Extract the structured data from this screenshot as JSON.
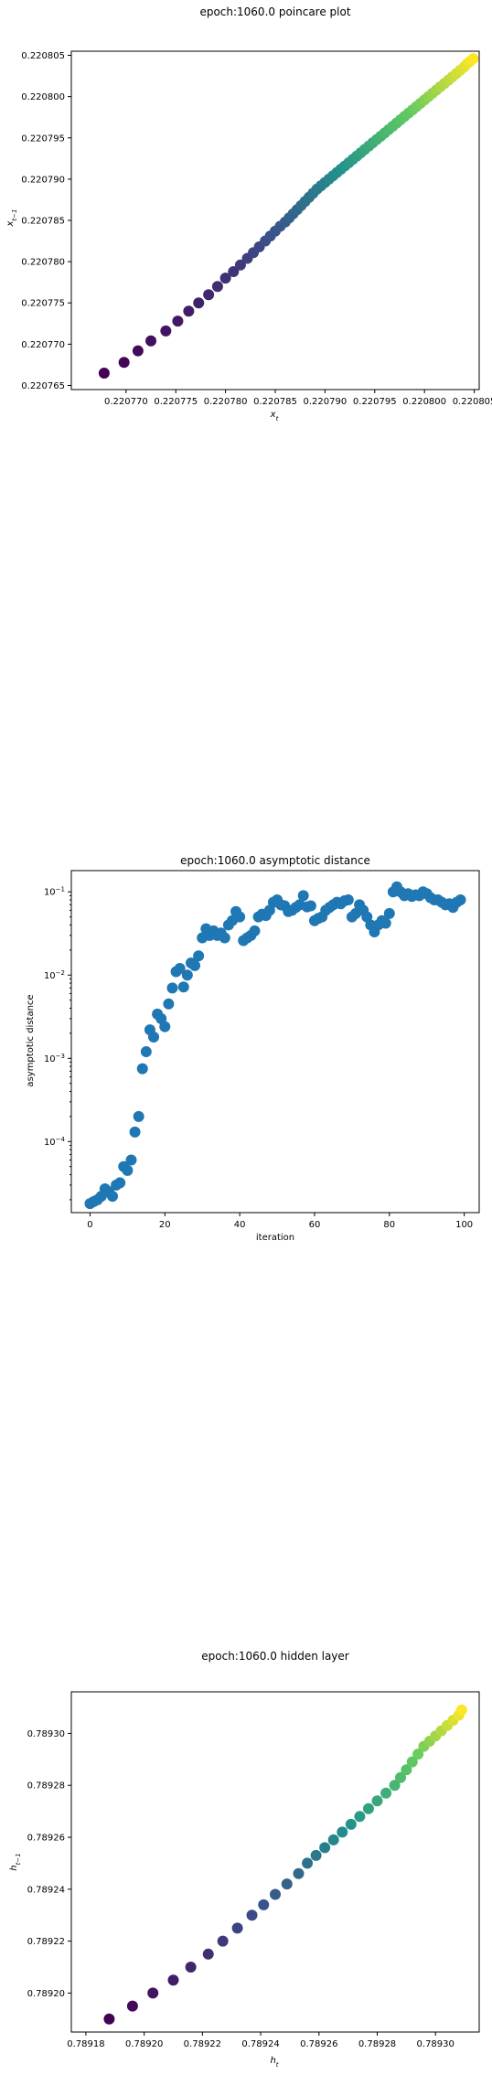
{
  "chart_data": [
    {
      "type": "scatter",
      "title": "epoch:1060.0 poincare plot",
      "xlabel": "x_t",
      "ylabel": "x_{t-1}",
      "xlim": [
        0.2207645,
        0.2208055
      ],
      "ylim": [
        0.2207645,
        0.2208055
      ],
      "x_ticks": [
        "0.220770",
        "0.220775",
        "0.220780",
        "0.220785",
        "0.220790",
        "0.220795",
        "0.220800",
        "0.220805"
      ],
      "y_ticks": [
        "0.220765",
        "0.220770",
        "0.220775",
        "0.220780",
        "0.220785",
        "0.220790",
        "0.220795",
        "0.220800",
        "0.220805"
      ],
      "colormap": "viridis",
      "x": [
        0.2207678,
        0.2207698,
        0.2207712,
        0.2207725,
        0.220774,
        0.2207752,
        0.2207763,
        0.2207773,
        0.2207783,
        0.2207792,
        0.22078,
        0.2207808,
        0.2207815,
        0.2207822,
        0.2207828,
        0.2207834,
        0.220784,
        0.2207845,
        0.220785,
        0.2207855,
        0.220786,
        0.2207864,
        0.2207868,
        0.2207872,
        0.2207876,
        0.220788,
        0.2207884,
        0.2207888,
        0.2207892,
        0.2207896,
        0.22079,
        0.2207904,
        0.2207908,
        0.2207912,
        0.2207916,
        0.220792,
        0.2207924,
        0.2207928,
        0.2207932,
        0.2207936,
        0.220794,
        0.2207944,
        0.2207948,
        0.2207952,
        0.2207956,
        0.220796,
        0.2207964,
        0.2207968,
        0.2207972,
        0.2207976,
        0.220798,
        0.2207984,
        0.2207988,
        0.2207992,
        0.2207996,
        0.2208,
        0.2208004,
        0.2208008,
        0.2208012,
        0.2208016,
        0.220802,
        0.2208024,
        0.2208028,
        0.2208032,
        0.2208036,
        0.220804,
        0.2208043,
        0.2208046,
        0.2208049
      ],
      "y": [
        0.2207665,
        0.2207678,
        0.2207692,
        0.2207704,
        0.2207716,
        0.2207728,
        0.220774,
        0.220775,
        0.220776,
        0.220777,
        0.220778,
        0.2207788,
        0.2207796,
        0.2207804,
        0.2207811,
        0.2207818,
        0.2207825,
        0.2207831,
        0.2207837,
        0.2207843,
        0.2207848,
        0.2207853,
        0.2207858,
        0.2207863,
        0.2207868,
        0.2207873,
        0.2207878,
        0.2207883,
        0.2207888,
        0.2207892,
        0.2207896,
        0.22079,
        0.2207904,
        0.2207908,
        0.2207912,
        0.2207916,
        0.220792,
        0.2207924,
        0.2207928,
        0.2207932,
        0.2207936,
        0.220794,
        0.2207944,
        0.2207948,
        0.2207952,
        0.2207956,
        0.220796,
        0.2207964,
        0.2207968,
        0.2207972,
        0.2207976,
        0.220798,
        0.2207984,
        0.2207988,
        0.2207992,
        0.2207996,
        0.2208,
        0.2208004,
        0.2208008,
        0.2208012,
        0.2208016,
        0.220802,
        0.2208024,
        0.2208028,
        0.2208032,
        0.2208036,
        0.220804,
        0.2208043,
        0.2208046
      ]
    },
    {
      "type": "scatter",
      "title": "epoch:1060.0 asymptotic distance",
      "xlabel": "iteration",
      "ylabel": "asymptotic distance",
      "yscale": "log",
      "xlim": [
        -5,
        104
      ],
      "ylim": [
        1.4e-05,
        0.18
      ],
      "x_ticks": [
        "0",
        "20",
        "40",
        "60",
        "80",
        "100"
      ],
      "y_ticks": [
        "10^-4",
        "10^-3",
        "10^-2",
        "10^-1"
      ],
      "color": "#1f77b4",
      "x": [
        0,
        1,
        2,
        3,
        4,
        5,
        6,
        7,
        8,
        9,
        10,
        11,
        12,
        13,
        14,
        15,
        16,
        17,
        18,
        19,
        20,
        21,
        22,
        23,
        24,
        25,
        26,
        27,
        28,
        29,
        30,
        31,
        32,
        33,
        34,
        35,
        36,
        37,
        38,
        39,
        40,
        41,
        42,
        43,
        44,
        45,
        46,
        47,
        48,
        49,
        50,
        51,
        52,
        53,
        54,
        55,
        56,
        57,
        58,
        59,
        60,
        61,
        62,
        63,
        64,
        65,
        66,
        67,
        68,
        69,
        70,
        71,
        72,
        73,
        74,
        75,
        76,
        77,
        78,
        79,
        80,
        81,
        82,
        83,
        84,
        85,
        86,
        87,
        88,
        89,
        90,
        91,
        92,
        93,
        94,
        95,
        96,
        97,
        98,
        99
      ],
      "y": [
        1.8e-05,
        1.9e-05,
        2e-05,
        2.2e-05,
        2.7e-05,
        2.5e-05,
        2.2e-05,
        3e-05,
        3.2e-05,
        5e-05,
        4.5e-05,
        6e-05,
        0.00013,
        0.0002,
        0.00075,
        0.0012,
        0.0022,
        0.0018,
        0.0034,
        0.003,
        0.0024,
        0.0045,
        0.007,
        0.011,
        0.012,
        0.0072,
        0.01,
        0.014,
        0.013,
        0.017,
        0.028,
        0.036,
        0.03,
        0.034,
        0.03,
        0.032,
        0.028,
        0.04,
        0.045,
        0.058,
        0.05,
        0.026,
        0.028,
        0.03,
        0.034,
        0.05,
        0.054,
        0.052,
        0.06,
        0.075,
        0.08,
        0.07,
        0.068,
        0.058,
        0.06,
        0.065,
        0.07,
        0.09,
        0.066,
        0.068,
        0.045,
        0.048,
        0.05,
        0.06,
        0.065,
        0.07,
        0.075,
        0.072,
        0.078,
        0.08,
        0.05,
        0.055,
        0.07,
        0.06,
        0.05,
        0.04,
        0.033,
        0.04,
        0.045,
        0.042,
        0.055,
        0.1,
        0.115,
        0.1,
        0.09,
        0.095,
        0.088,
        0.092,
        0.09,
        0.1,
        0.095,
        0.085,
        0.08,
        0.08,
        0.075,
        0.07,
        0.072,
        0.065,
        0.075,
        0.08
      ]
    },
    {
      "type": "scatter",
      "title": "epoch:1060.0 hidden layer",
      "xlabel": "h_t",
      "ylabel": "h_{t-1}",
      "xlim": [
        0.789175,
        0.789315
      ],
      "ylim": [
        0.789185,
        0.789316
      ],
      "x_ticks": [
        "0.78918",
        "0.78920",
        "0.78922",
        "0.78924",
        "0.78926",
        "0.78928",
        "0.78930"
      ],
      "y_ticks": [
        "0.78920",
        "0.78922",
        "0.78924",
        "0.78926",
        "0.78928",
        "0.78930"
      ],
      "colormap": "viridis",
      "x": [
        0.789188,
        0.789196,
        0.789203,
        0.78921,
        0.789216,
        0.789222,
        0.789227,
        0.789232,
        0.789237,
        0.789241,
        0.789245,
        0.789249,
        0.789253,
        0.789256,
        0.789259,
        0.789262,
        0.789265,
        0.789268,
        0.789271,
        0.789274,
        0.789277,
        0.78928,
        0.789283,
        0.789286,
        0.789288,
        0.78929,
        0.789292,
        0.789294,
        0.789296,
        0.789298,
        0.7893,
        0.789302,
        0.789304,
        0.789306,
        0.789308,
        0.789309
      ],
      "y": [
        0.78919,
        0.789195,
        0.7892,
        0.789205,
        0.78921,
        0.789215,
        0.78922,
        0.789225,
        0.78923,
        0.789234,
        0.789238,
        0.789242,
        0.789246,
        0.78925,
        0.789253,
        0.789256,
        0.789259,
        0.789262,
        0.789265,
        0.789268,
        0.789271,
        0.789274,
        0.789277,
        0.78928,
        0.789283,
        0.789286,
        0.789289,
        0.789292,
        0.789295,
        0.789297,
        0.789299,
        0.789301,
        0.789303,
        0.789305,
        0.789307,
        0.789309
      ]
    }
  ]
}
